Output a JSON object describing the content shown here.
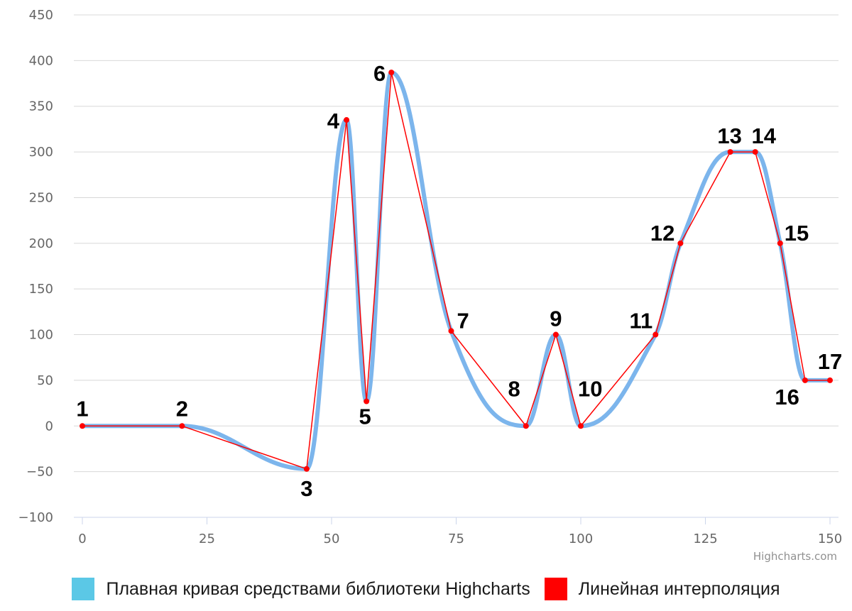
{
  "chart_data": {
    "type": "line",
    "title": "",
    "xlabel": "",
    "ylabel": "",
    "xlim": [
      0,
      150
    ],
    "ylim": [
      -100,
      450
    ],
    "x_ticks": [
      0,
      25,
      50,
      75,
      100,
      125,
      150
    ],
    "y_ticks": [
      -100,
      -50,
      0,
      50,
      100,
      150,
      200,
      250,
      300,
      350,
      400,
      450
    ],
    "grid": true,
    "legend_position": "bottom-center",
    "credits": "Highcharts.com",
    "points": [
      {
        "label": "1",
        "x": 0,
        "y": 0
      },
      {
        "label": "2",
        "x": 20,
        "y": 0
      },
      {
        "label": "3",
        "x": 45,
        "y": -47
      },
      {
        "label": "4",
        "x": 53,
        "y": 335
      },
      {
        "label": "5",
        "x": 57,
        "y": 27
      },
      {
        "label": "6",
        "x": 62,
        "y": 387
      },
      {
        "label": "7",
        "x": 74,
        "y": 104
      },
      {
        "label": "8",
        "x": 89,
        "y": 0
      },
      {
        "label": "9",
        "x": 95,
        "y": 100
      },
      {
        "label": "10",
        "x": 100,
        "y": 0
      },
      {
        "label": "11",
        "x": 115,
        "y": 100
      },
      {
        "label": "12",
        "x": 120,
        "y": 200
      },
      {
        "label": "13",
        "x": 130,
        "y": 300
      },
      {
        "label": "14",
        "x": 135,
        "y": 300
      },
      {
        "label": "15",
        "x": 140,
        "y": 200
      },
      {
        "label": "16",
        "x": 145,
        "y": 50
      },
      {
        "label": "17",
        "x": 150,
        "y": 50
      }
    ],
    "series": [
      {
        "name": "Плавная кривая средствами библиотеки Highcharts",
        "kind": "spline",
        "color": "#7cb5ec",
        "legend_color": "#5bc8e6"
      },
      {
        "name": "Линейная интерполяция",
        "kind": "line",
        "color": "#ff0000",
        "legend_color": "#ff0000"
      }
    ]
  }
}
